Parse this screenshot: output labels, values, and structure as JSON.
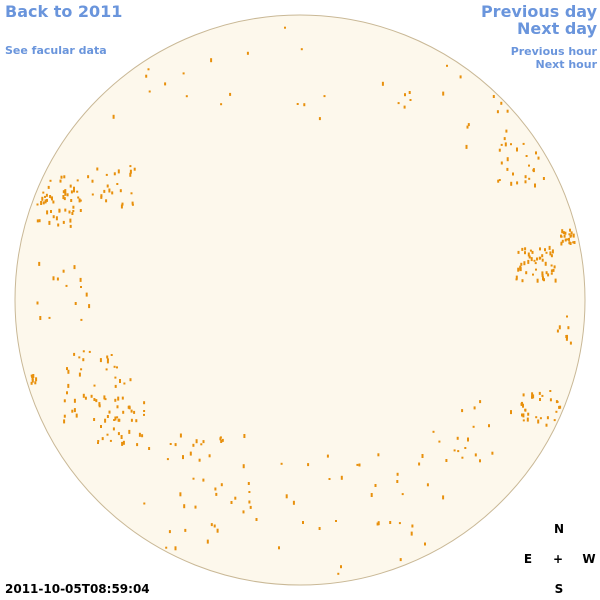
{
  "navigation": {
    "back": "Back to 2011",
    "facular": "See facular data",
    "previous_day": "Previous day",
    "next_day": "Next day",
    "previous_hour": "Previous hour",
    "next_hour": "Next hour"
  },
  "timestamp": "2011-10-05T08:59:04",
  "compass": {
    "north": "N",
    "east": "E",
    "center": "+",
    "west": "W",
    "south": "S"
  }
}
